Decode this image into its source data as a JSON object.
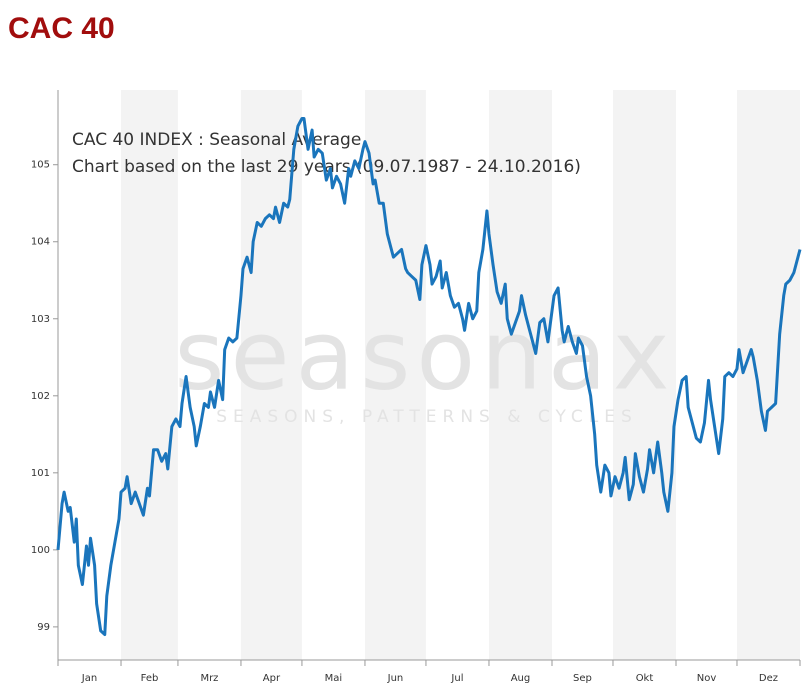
{
  "heading": "CAC 40",
  "chart_data": {
    "type": "line",
    "title": "CAC 40 INDEX : Seasonal Average",
    "subtitle": "Chart based on the last 29 years (09.07.1987 - 24.10.2016)",
    "watermark": "seasonax",
    "watermark_tagline": "SEASONS, PATTERNS & CYCLES",
    "categories": [
      "Jan",
      "Feb",
      "Mrz",
      "Apr",
      "Mai",
      "Jun",
      "Jul",
      "Aug",
      "Sep",
      "Okt",
      "Nov",
      "Dez"
    ],
    "xlim": [
      0,
      365
    ],
    "xticks": [
      0,
      31,
      59,
      90,
      120,
      151,
      181,
      212,
      243,
      273,
      304,
      334,
      365
    ],
    "ylim": [
      98.57,
      105.97
    ],
    "yticks": [
      99,
      100,
      101,
      102,
      103,
      104,
      105
    ],
    "series": [
      {
        "name": "CAC 40",
        "color": "#1a75bc",
        "x": [
          0,
          2,
          3,
          5,
          6,
          8,
          9,
          10,
          12,
          14,
          15,
          16,
          18,
          19,
          21,
          23,
          24,
          26,
          28,
          30,
          31,
          33,
          34,
          36,
          38,
          40,
          42,
          44,
          45,
          47,
          49,
          51,
          53,
          54,
          56,
          58,
          60,
          61,
          63,
          65,
          67,
          68,
          70,
          72,
          74,
          75,
          77,
          79,
          81,
          82,
          84,
          86,
          88,
          90,
          91,
          93,
          95,
          96,
          98,
          100,
          102,
          104,
          106,
          107,
          109,
          111,
          113,
          114,
          116,
          118,
          120,
          121,
          123,
          125,
          126,
          128,
          130,
          132,
          134,
          135,
          137,
          139,
          141,
          143,
          144,
          146,
          148,
          150,
          151,
          153,
          155,
          156,
          158,
          160,
          162,
          164,
          165,
          167,
          169,
          171,
          172,
          174,
          176,
          178,
          179,
          181,
          183,
          184,
          186,
          188,
          189,
          191,
          193,
          195,
          197,
          199,
          200,
          202,
          204,
          206,
          207,
          209,
          211,
          212,
          214,
          216,
          218,
          220,
          221,
          223,
          225,
          227,
          228,
          230,
          232,
          233,
          235,
          237,
          239,
          241,
          242,
          244,
          246,
          248,
          249,
          251,
          253,
          255,
          256,
          258,
          260,
          262,
          264,
          265,
          267,
          269,
          271,
          272,
          274,
          276,
          278,
          279,
          281,
          283,
          284,
          286,
          288,
          290,
          291,
          293,
          295,
          297,
          298,
          300,
          302,
          303,
          305,
          307,
          309,
          310,
          312,
          314,
          316,
          318,
          320,
          321,
          323,
          325,
          327,
          328,
          330,
          332,
          334,
          335,
          337,
          339,
          341,
          342,
          344,
          346,
          348,
          349,
          351,
          353,
          355,
          357,
          358,
          360,
          362,
          364,
          365
        ],
        "values": [
          100.0,
          100.6,
          100.75,
          100.5,
          100.55,
          100.1,
          100.4,
          99.8,
          99.55,
          100.05,
          99.8,
          100.15,
          99.8,
          99.3,
          98.95,
          98.9,
          99.4,
          99.8,
          100.1,
          100.4,
          100.75,
          100.8,
          100.95,
          100.6,
          100.75,
          100.6,
          100.45,
          100.8,
          100.7,
          101.3,
          101.3,
          101.15,
          101.25,
          101.05,
          101.6,
          101.7,
          101.6,
          101.9,
          102.25,
          101.85,
          101.6,
          101.35,
          101.6,
          101.9,
          101.85,
          102.05,
          101.85,
          102.2,
          101.95,
          102.6,
          102.75,
          102.7,
          102.75,
          103.3,
          103.65,
          103.8,
          103.6,
          104.0,
          104.25,
          104.2,
          104.3,
          104.35,
          104.3,
          104.45,
          104.25,
          104.5,
          104.45,
          104.55,
          105.2,
          105.5,
          105.6,
          105.6,
          105.2,
          105.45,
          105.1,
          105.2,
          105.15,
          104.8,
          104.95,
          104.7,
          104.85,
          104.75,
          104.5,
          104.95,
          104.85,
          105.05,
          104.95,
          105.2,
          105.3,
          105.15,
          104.75,
          104.8,
          104.5,
          104.5,
          104.1,
          103.9,
          103.8,
          103.85,
          103.9,
          103.65,
          103.6,
          103.55,
          103.5,
          103.25,
          103.7,
          103.95,
          103.7,
          103.45,
          103.55,
          103.75,
          103.4,
          103.6,
          103.3,
          103.15,
          103.2,
          103.0,
          102.85,
          103.2,
          103.0,
          103.1,
          103.6,
          103.9,
          104.4,
          104.1,
          103.7,
          103.35,
          103.2,
          103.45,
          103.0,
          102.8,
          102.95,
          103.1,
          103.3,
          103.05,
          102.85,
          102.75,
          102.55,
          102.95,
          103.0,
          102.7,
          102.9,
          103.3,
          103.4,
          102.85,
          102.7,
          102.9,
          102.7,
          102.55,
          102.75,
          102.65,
          102.25,
          102.0,
          101.5,
          101.1,
          100.75,
          101.1,
          101.0,
          100.7,
          100.95,
          100.8,
          101.0,
          101.2,
          100.65,
          100.85,
          101.25,
          100.95,
          100.75,
          101.05,
          101.3,
          101.0,
          101.4,
          101.0,
          100.75,
          100.5,
          101.0,
          101.6,
          101.95,
          102.2,
          102.25,
          101.85,
          101.65,
          101.45,
          101.4,
          101.65,
          102.2,
          101.95,
          101.6,
          101.25,
          101.7,
          102.25,
          102.3,
          102.25,
          102.35,
          102.6,
          102.3,
          102.45,
          102.6,
          102.5,
          102.2,
          101.8,
          101.55,
          101.8,
          101.85,
          101.9,
          102.8,
          103.3,
          103.45,
          103.5,
          103.6,
          103.8,
          103.9
        ]
      }
    ]
  }
}
